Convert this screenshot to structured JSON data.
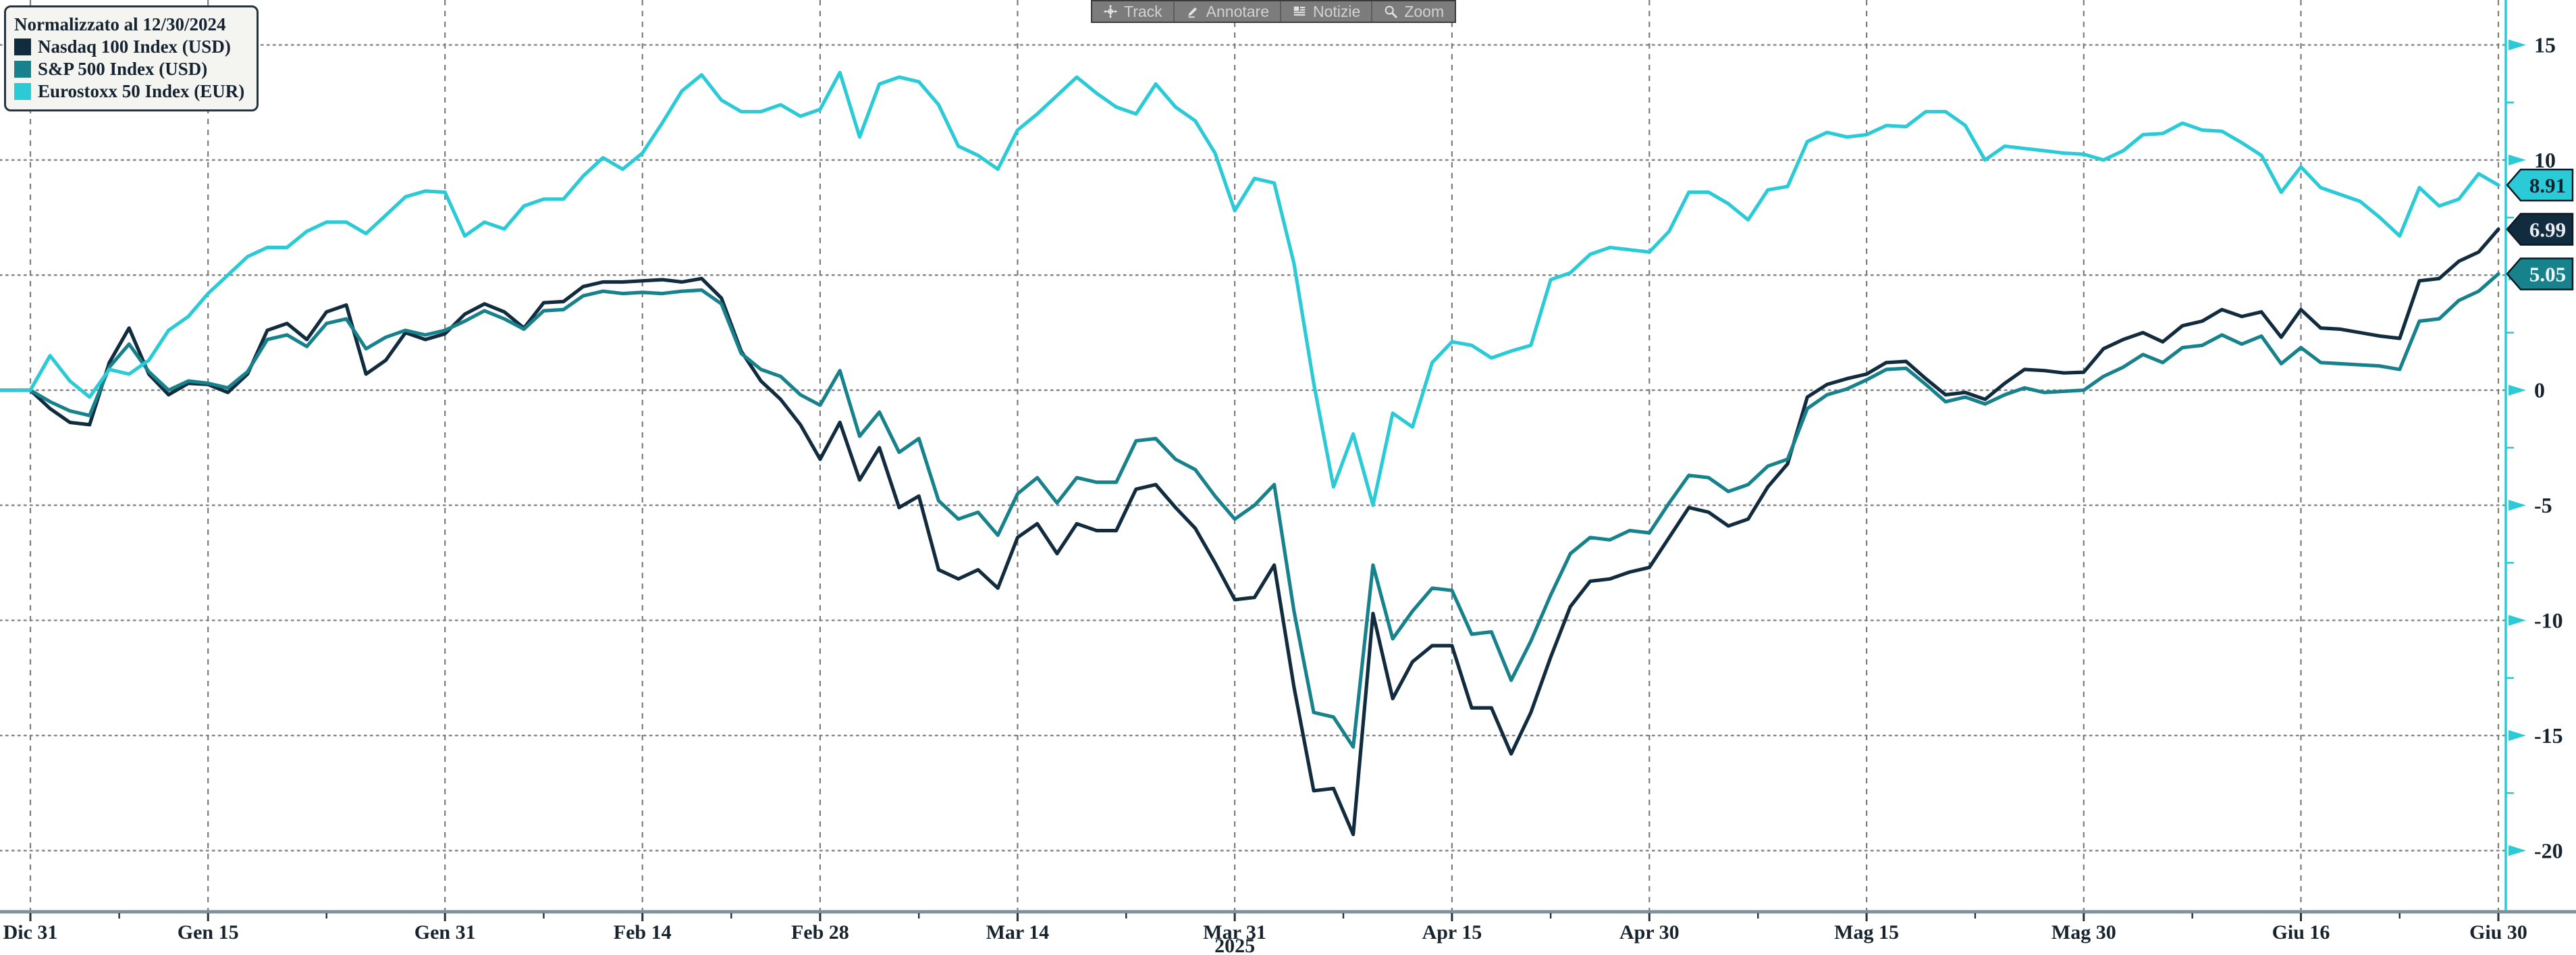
{
  "legend": {
    "title": "Normalizzato al 12/30/2024",
    "items": [
      {
        "label": "Nasdaq 100 Index (USD)",
        "color": "#112b3f"
      },
      {
        "label": "S&P 500 Index (USD)",
        "color": "#17828b"
      },
      {
        "label": "Eurostoxx 50 Index (EUR)",
        "color": "#2bcad7"
      }
    ]
  },
  "toolbar": {
    "buttons": [
      {
        "label": "Track",
        "icon": "track-crosshair-icon"
      },
      {
        "label": "Annotare",
        "icon": "annotate-pencil-icon"
      },
      {
        "label": "Notizie",
        "icon": "news-list-icon"
      },
      {
        "label": "Zoom",
        "icon": "zoom-magnifier-icon"
      }
    ]
  },
  "chart_data": {
    "type": "line",
    "title": "Normalizzato al 12/30/2024",
    "xlabel": "",
    "ylabel": "",
    "ylim": [
      -22.6,
      16.95
    ],
    "grid": true,
    "legend_position": "top-left",
    "x_tick_labels": [
      "Dic 31",
      "Gen 15",
      "Gen 31",
      "Feb 14",
      "Feb 28",
      "Mar 14",
      "Mar 31",
      "Apr 15",
      "Apr 30",
      "Mag 15",
      "Mag 30",
      "Giu 16",
      "Giu 30"
    ],
    "x_tick_indices": [
      0,
      9,
      21,
      31,
      40,
      50,
      61,
      72,
      82,
      93,
      104,
      115,
      125
    ],
    "x_year_label": {
      "text": "2025",
      "tick_index": 6
    },
    "y_ticks": [
      15,
      10,
      5,
      0,
      -5,
      -10,
      -15,
      -20
    ],
    "y_minor_ticks": [
      12.5,
      7.5,
      2.5,
      -2.5,
      -7.5,
      -12.5,
      -17.5
    ],
    "axis_color": "#2bcad7",
    "axis_text_color": "#17242e",
    "grid_color": "#8a8a8a",
    "series": [
      {
        "name": "Nasdaq 100 Index (USD)",
        "color": "#112b3f",
        "end_label": "6.99",
        "badge_bg": "#112b3f",
        "badge_text": "#e8ecef",
        "values": [
          0.0,
          -0.8,
          -1.4,
          -1.5,
          1.2,
          2.7,
          0.7,
          -0.2,
          0.3,
          0.25,
          -0.1,
          0.7,
          2.6,
          2.9,
          2.2,
          3.4,
          3.7,
          0.7,
          1.3,
          2.5,
          2.2,
          2.45,
          3.3,
          3.75,
          3.4,
          2.7,
          3.8,
          3.85,
          4.5,
          4.7,
          4.7,
          4.75,
          4.8,
          4.7,
          4.85,
          4.0,
          1.7,
          0.4,
          -0.4,
          -1.5,
          -3.0,
          -1.4,
          -3.9,
          -2.5,
          -5.1,
          -4.6,
          -7.8,
          -8.2,
          -7.8,
          -8.6,
          -6.4,
          -5.8,
          -7.1,
          -5.8,
          -6.1,
          -6.1,
          -4.3,
          -4.1,
          -5.1,
          -6.0,
          -7.5,
          -9.1,
          -9.0,
          -7.6,
          -12.9,
          -17.4,
          -17.3,
          -19.3,
          -9.7,
          -13.4,
          -11.8,
          -11.1,
          -11.1,
          -13.8,
          -13.8,
          -15.8,
          -14.0,
          -11.6,
          -9.4,
          -8.3,
          -8.2,
          -7.9,
          -7.7,
          -6.4,
          -5.1,
          -5.3,
          -5.9,
          -5.6,
          -4.2,
          -3.2,
          -0.3,
          0.25,
          0.5,
          0.7,
          1.2,
          1.25,
          0.5,
          -0.2,
          -0.1,
          -0.4,
          0.3,
          0.9,
          0.85,
          0.75,
          0.78,
          1.8,
          2.2,
          2.5,
          2.1,
          2.8,
          3.0,
          3.5,
          3.2,
          3.4,
          2.3,
          3.5,
          2.7,
          2.65,
          2.5,
          2.35,
          2.25,
          4.75,
          4.85,
          5.6,
          6.0,
          6.99
        ]
      },
      {
        "name": "S&P 500 Index (USD)",
        "color": "#17828b",
        "end_label": "5.05",
        "badge_bg": "#17828b",
        "badge_text": "#f2f5f6",
        "values": [
          0.0,
          -0.5,
          -0.9,
          -1.1,
          1.0,
          2.0,
          0.8,
          0.0,
          0.4,
          0.3,
          0.1,
          0.8,
          2.2,
          2.4,
          1.9,
          2.9,
          3.1,
          1.8,
          2.3,
          2.6,
          2.4,
          2.6,
          3.0,
          3.45,
          3.1,
          2.65,
          3.45,
          3.5,
          4.1,
          4.3,
          4.2,
          4.25,
          4.2,
          4.3,
          4.35,
          3.75,
          1.6,
          0.9,
          0.6,
          -0.2,
          -0.65,
          0.85,
          -2.0,
          -0.95,
          -2.7,
          -2.1,
          -4.8,
          -5.6,
          -5.3,
          -6.3,
          -4.5,
          -3.8,
          -4.9,
          -3.8,
          -4.0,
          -4.0,
          -2.2,
          -2.1,
          -3.0,
          -3.45,
          -4.6,
          -5.6,
          -5.0,
          -4.1,
          -9.6,
          -14.0,
          -14.2,
          -15.5,
          -7.6,
          -10.8,
          -9.6,
          -8.6,
          -8.7,
          -10.6,
          -10.5,
          -12.6,
          -10.9,
          -8.9,
          -7.1,
          -6.4,
          -6.5,
          -6.1,
          -6.2,
          -4.9,
          -3.7,
          -3.8,
          -4.4,
          -4.1,
          -3.3,
          -3.0,
          -0.8,
          -0.2,
          0.05,
          0.45,
          0.9,
          0.95,
          0.25,
          -0.5,
          -0.3,
          -0.6,
          -0.2,
          0.1,
          -0.1,
          -0.05,
          0.0,
          0.6,
          1.0,
          1.55,
          1.2,
          1.85,
          1.95,
          2.4,
          2.0,
          2.35,
          1.15,
          1.85,
          1.2,
          1.15,
          1.1,
          1.05,
          0.9,
          3.0,
          3.1,
          3.9,
          4.3,
          5.05
        ]
      },
      {
        "name": "Eurostoxx 50 Index (EUR)",
        "color": "#2bcad7",
        "end_label": "8.91",
        "badge_bg": "#2bcad7",
        "badge_text": "#0e2230",
        "values": [
          0.0,
          1.5,
          0.4,
          -0.3,
          0.9,
          0.7,
          1.3,
          2.6,
          3.2,
          4.2,
          5.0,
          5.8,
          6.2,
          6.2,
          6.9,
          7.3,
          7.3,
          6.8,
          7.6,
          8.4,
          8.65,
          8.6,
          6.7,
          7.3,
          7.0,
          8.0,
          8.3,
          8.3,
          9.3,
          10.1,
          9.6,
          10.3,
          11.6,
          13.0,
          13.7,
          12.6,
          12.1,
          12.1,
          12.4,
          11.9,
          12.2,
          13.8,
          11.0,
          13.3,
          13.6,
          13.4,
          12.4,
          10.6,
          10.2,
          9.6,
          11.3,
          12.0,
          12.8,
          13.6,
          12.9,
          12.3,
          12.0,
          13.3,
          12.3,
          11.7,
          10.3,
          7.8,
          9.2,
          9.0,
          5.5,
          0.3,
          -4.2,
          -1.9,
          -5.0,
          -1.0,
          -1.6,
          1.2,
          2.1,
          1.95,
          1.4,
          1.7,
          1.95,
          4.8,
          5.1,
          5.9,
          6.2,
          6.1,
          6.0,
          6.9,
          8.6,
          8.6,
          8.1,
          7.4,
          8.7,
          8.85,
          10.8,
          11.2,
          11.0,
          11.1,
          11.5,
          11.45,
          12.1,
          12.1,
          11.5,
          10.0,
          10.6,
          10.5,
          10.4,
          10.3,
          10.25,
          10.0,
          10.4,
          11.1,
          11.15,
          11.6,
          11.3,
          11.25,
          10.75,
          10.2,
          8.6,
          9.7,
          8.8,
          8.5,
          8.2,
          7.5,
          6.7,
          8.8,
          8.0,
          8.3,
          9.4,
          8.91
        ]
      }
    ]
  }
}
